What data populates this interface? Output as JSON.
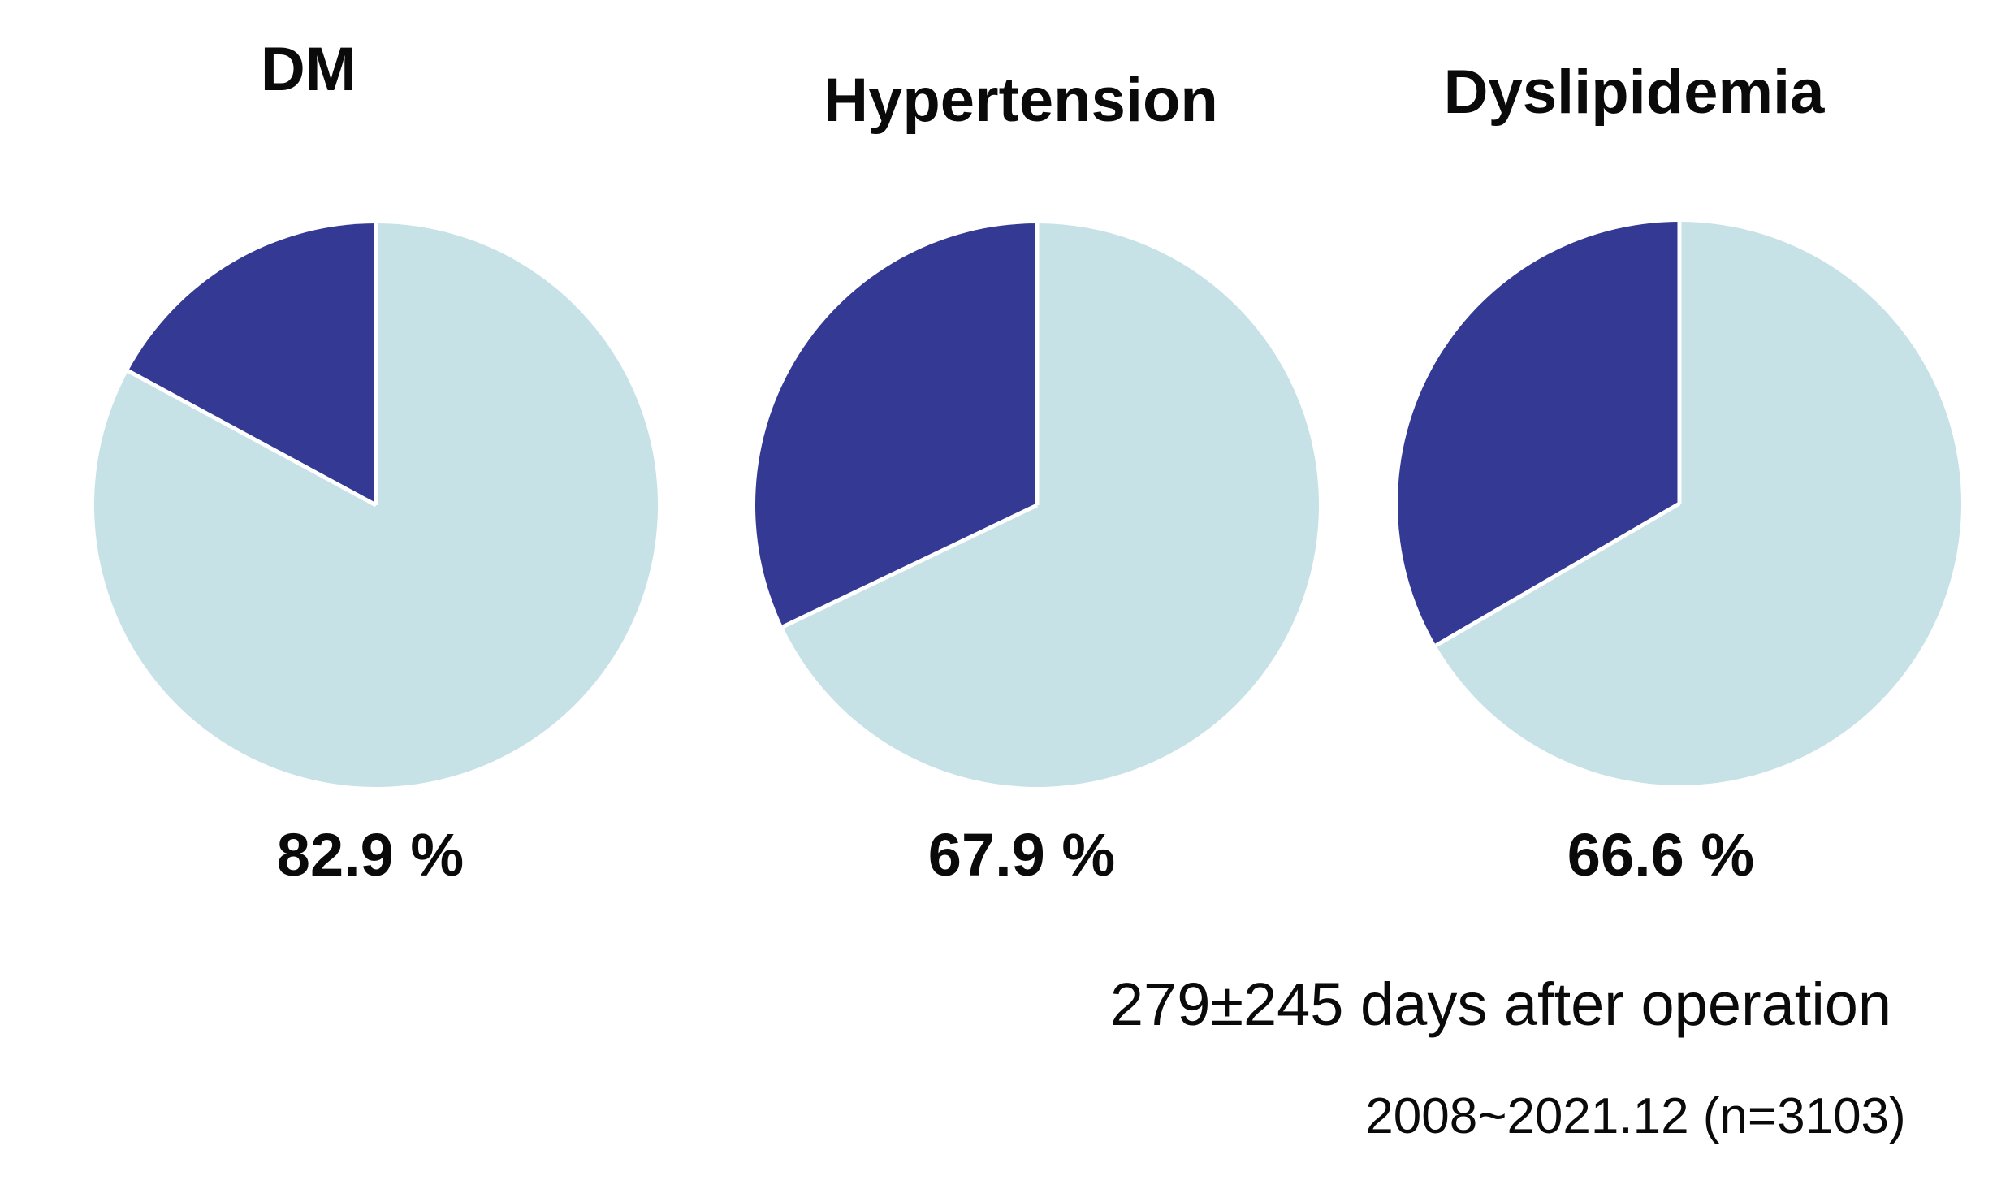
{
  "figure": {
    "background": "#FFFFFF",
    "captions": {
      "line1": "279±245 days after operation",
      "line2": "2008~2021.12 (n=3103)"
    }
  },
  "colors": {
    "slice_main": "#C6E2E7",
    "slice_accent": "#343A94",
    "divider": "#FFFFFF",
    "text": "#0A0A0A"
  },
  "chart_data": [
    {
      "type": "pie",
      "title": "DM",
      "percent_label": "82.9 %",
      "start_angle_deg": 0,
      "direction": "clockwise",
      "legend": "none",
      "slices": [
        {
          "name": "labeled-share",
          "value": 82.9,
          "color": "#C6E2E7"
        },
        {
          "name": "remainder",
          "value": 17.1,
          "color": "#343A94"
        }
      ]
    },
    {
      "type": "pie",
      "title": "Hypertension",
      "percent_label": "67.9 %",
      "start_angle_deg": 0,
      "direction": "clockwise",
      "legend": "none",
      "slices": [
        {
          "name": "labeled-share",
          "value": 67.9,
          "color": "#C6E2E7"
        },
        {
          "name": "remainder",
          "value": 32.1,
          "color": "#343A94"
        }
      ]
    },
    {
      "type": "pie",
      "title": "Dyslipidemia",
      "percent_label": "66.6 %",
      "start_angle_deg": 0,
      "direction": "clockwise",
      "legend": "none",
      "slices": [
        {
          "name": "labeled-share",
          "value": 66.6,
          "color": "#C6E2E7"
        },
        {
          "name": "remainder",
          "value": 33.4,
          "color": "#343A94"
        }
      ]
    }
  ]
}
